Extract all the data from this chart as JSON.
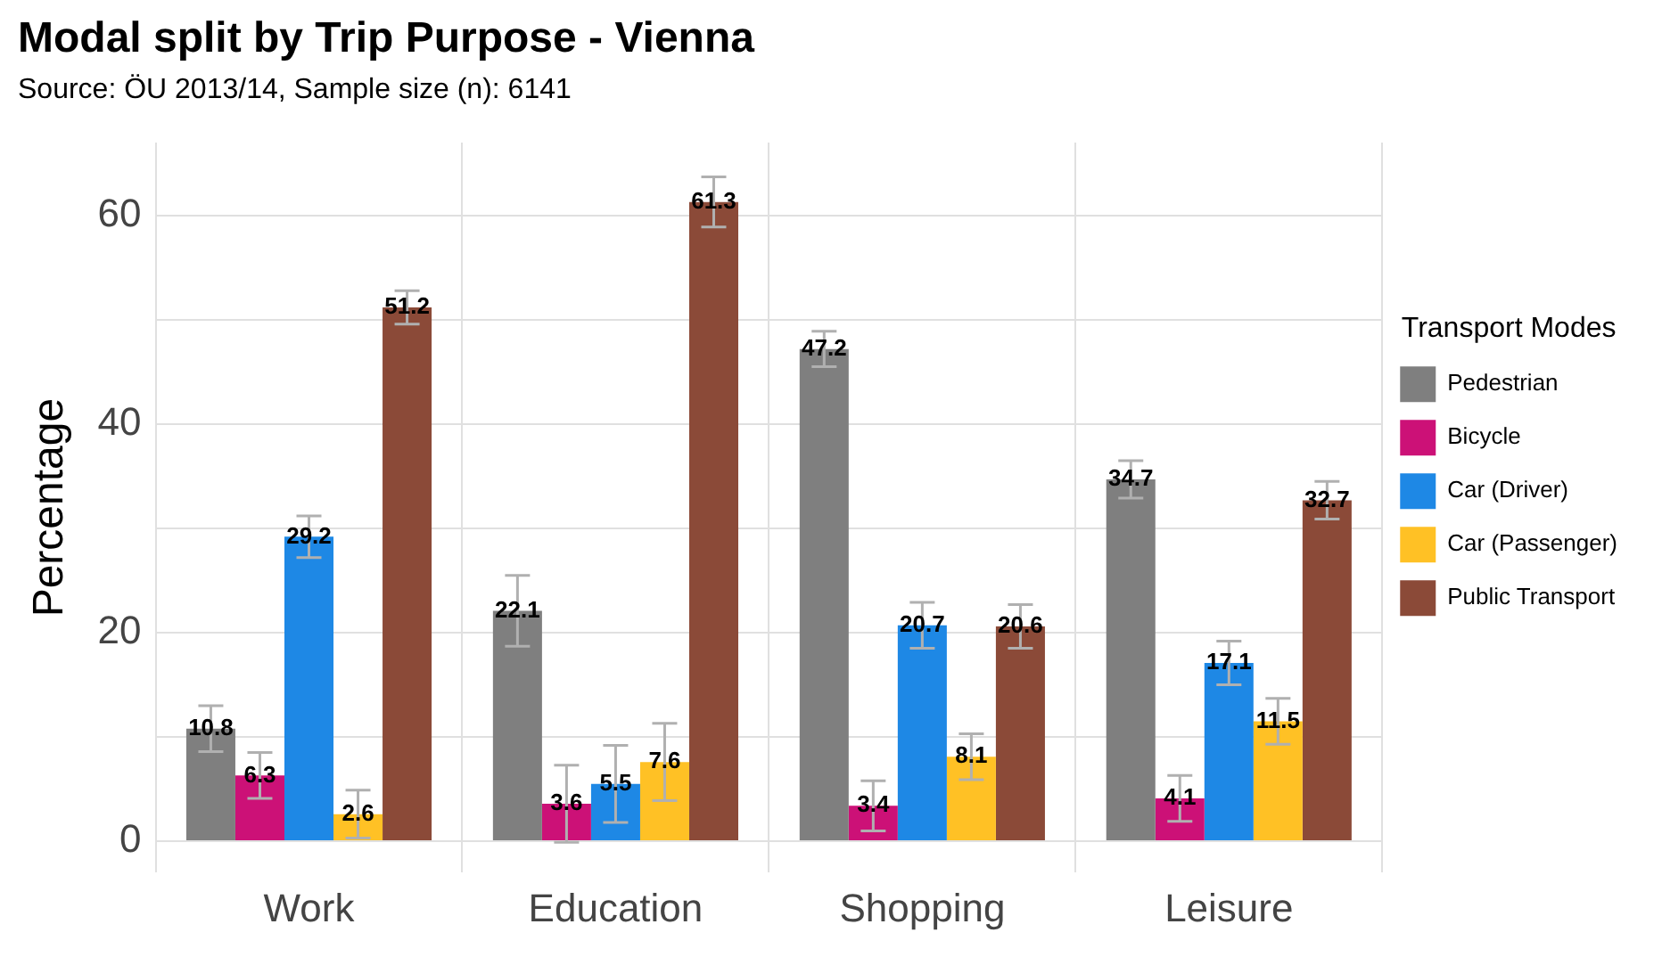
{
  "chart_data": {
    "type": "bar",
    "title": "Modal split by Trip Purpose - Vienna",
    "subtitle": "Source: ÖU 2013/14, Sample size (n): 6141",
    "ylabel": "Percentage",
    "legend_title": "Transport Modes",
    "categories": [
      "Work",
      "Education",
      "Shopping",
      "Leisure"
    ],
    "series": [
      {
        "name": "Pedestrian",
        "color": "#7f7f7f",
        "values": [
          10.8,
          22.1,
          47.2,
          34.7
        ],
        "errors": [
          2.2,
          3.4,
          1.7,
          1.8
        ]
      },
      {
        "name": "Bicycle",
        "color": "#cc1177",
        "values": [
          6.3,
          3.6,
          3.4,
          4.1
        ],
        "errors": [
          2.2,
          3.7,
          2.4,
          2.2
        ]
      },
      {
        "name": "Car (Driver)",
        "color": "#1e88e5",
        "values": [
          29.2,
          5.5,
          20.7,
          17.1
        ],
        "errors": [
          2.0,
          3.7,
          2.2,
          2.1
        ]
      },
      {
        "name": "Car (Passenger)",
        "color": "#ffc125",
        "values": [
          2.6,
          7.6,
          8.1,
          11.5
        ],
        "errors": [
          2.3,
          3.7,
          2.2,
          2.2
        ]
      },
      {
        "name": "Public Transport",
        "color": "#8b4a38",
        "values": [
          51.2,
          61.3,
          20.6,
          32.7
        ],
        "errors": [
          1.6,
          2.4,
          2.1,
          1.8
        ]
      }
    ],
    "ylim": [
      -3,
      67
    ],
    "yticks": [
      0,
      {
        "value": 10,
        "label": null
      },
      20,
      {
        "value": 30,
        "label": null
      },
      40,
      {
        "value": 50,
        "label": null
      },
      60
    ],
    "grid": true,
    "legend": "right",
    "data_labels": true
  }
}
